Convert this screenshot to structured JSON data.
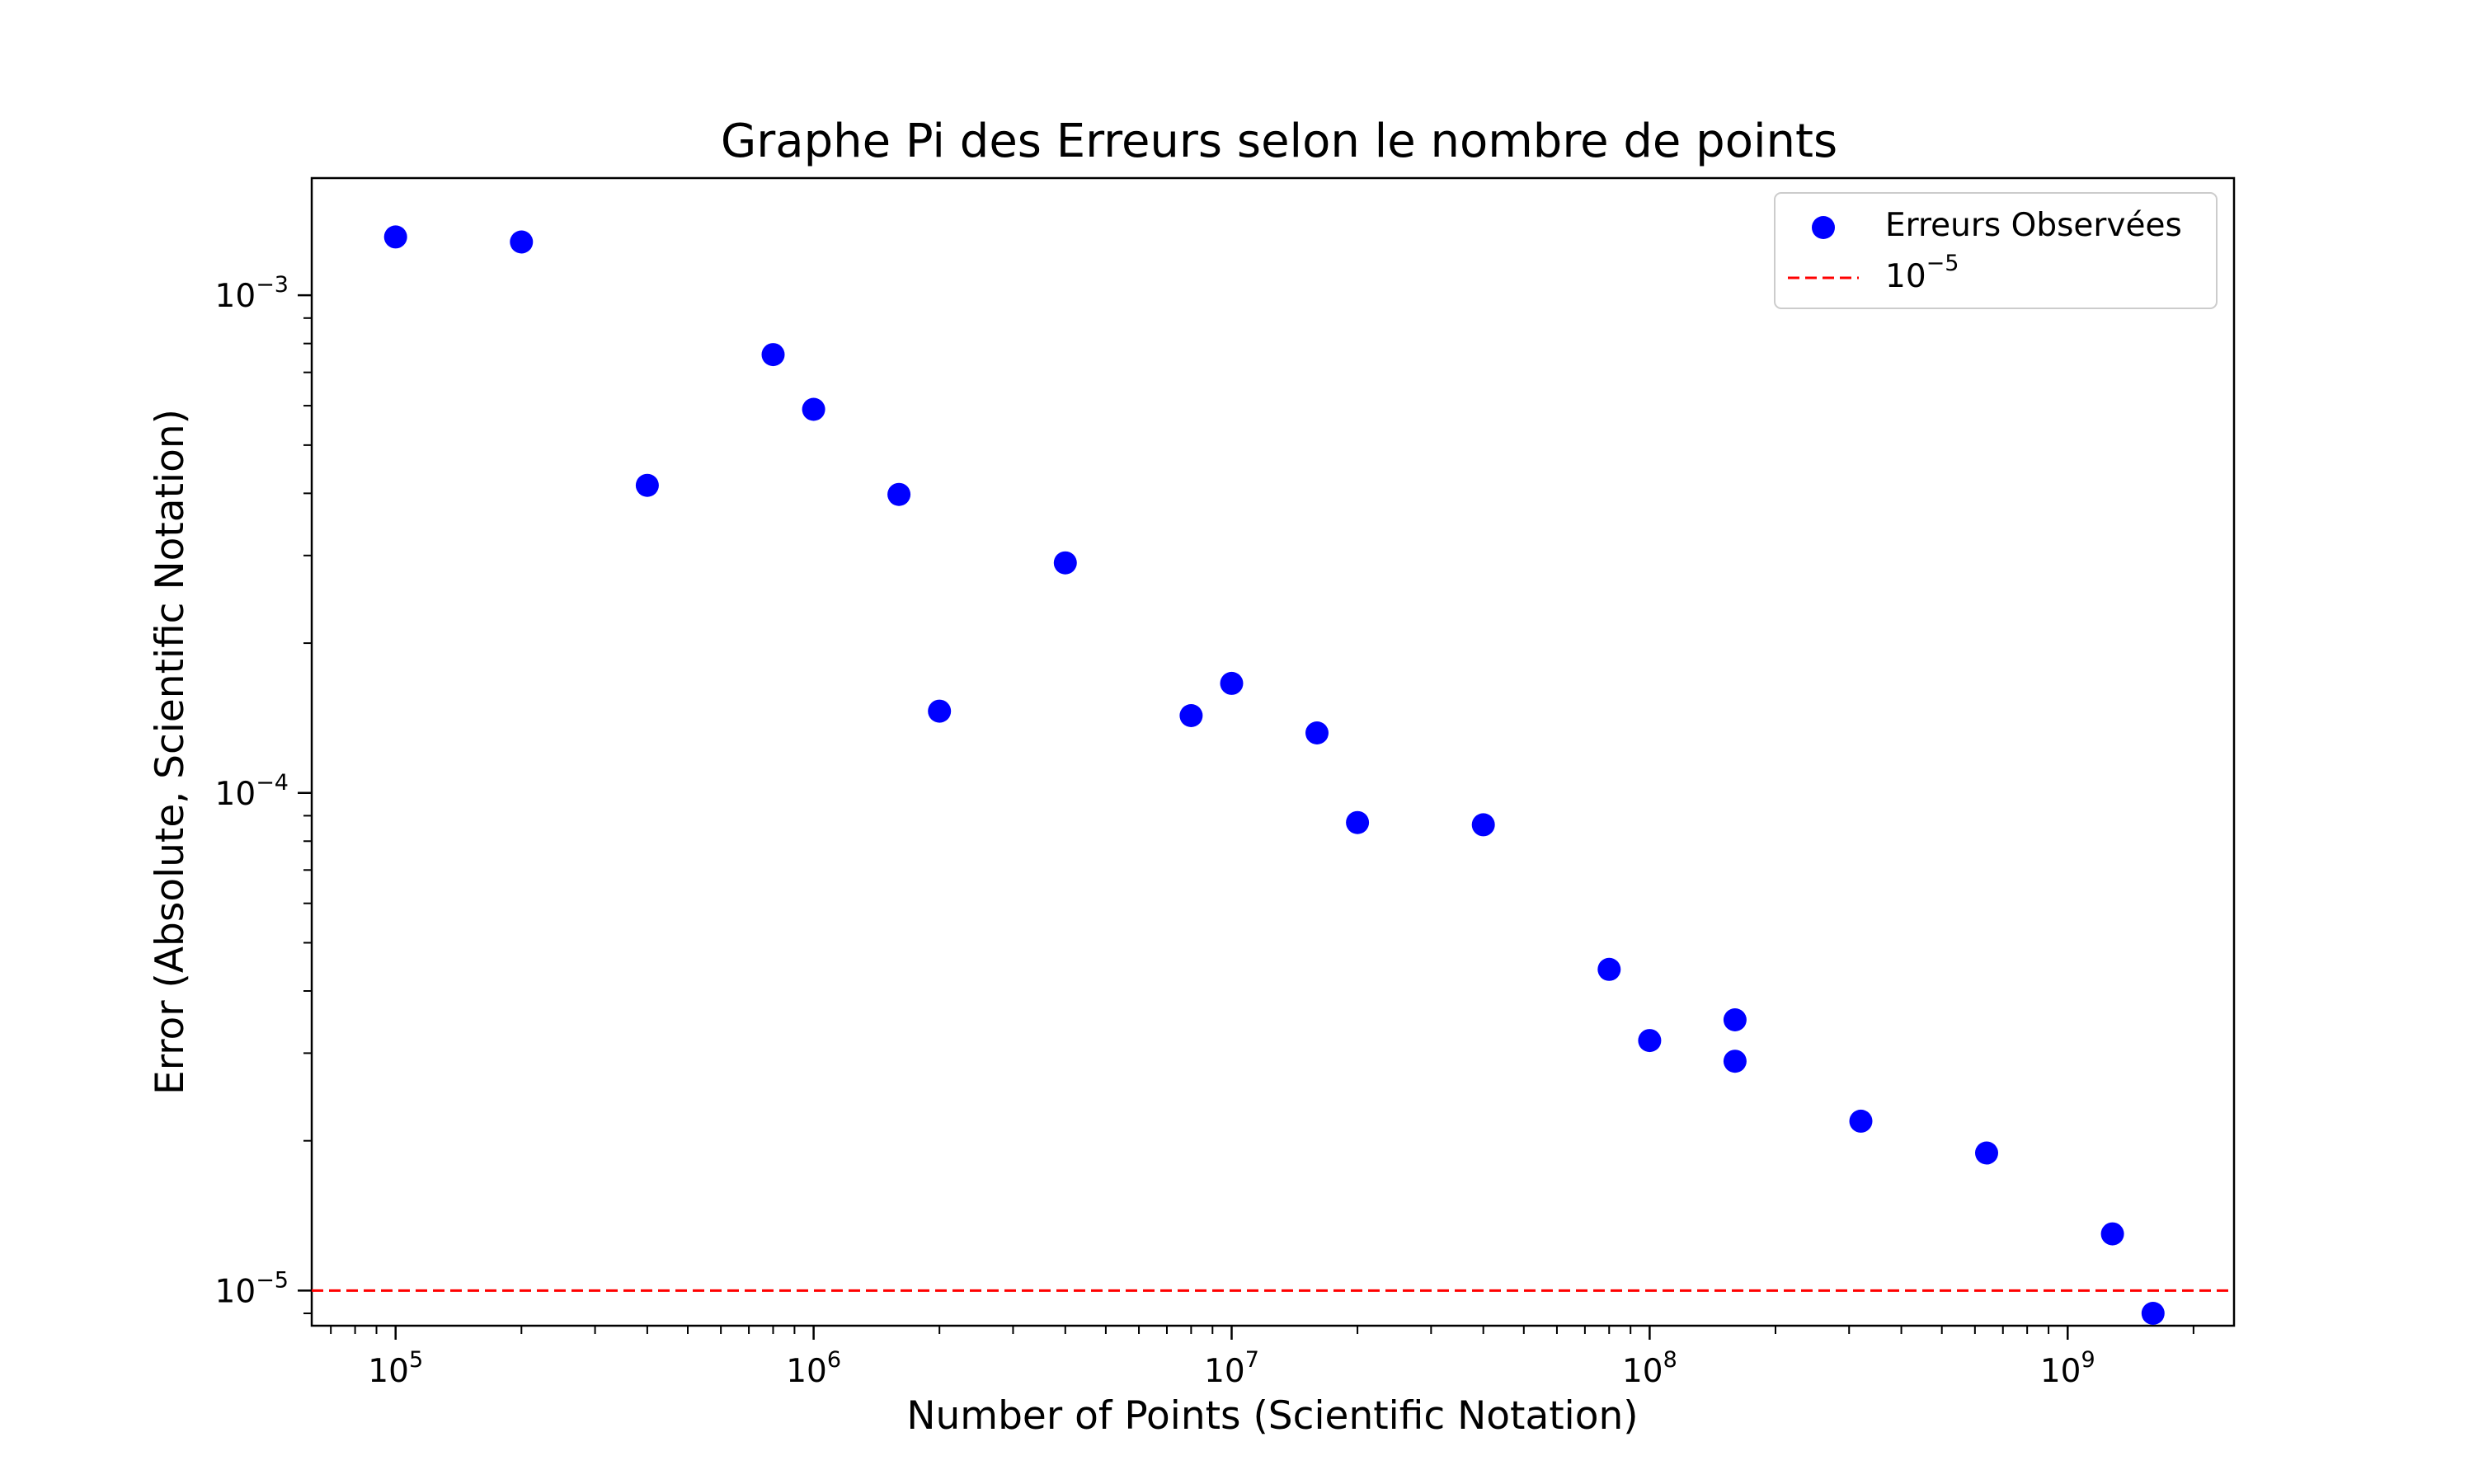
{
  "chart_data": {
    "type": "scatter",
    "title": "Graphe Pi des Erreurs selon le nombre de points",
    "xlabel": "Number of Points (Scientific Notation)",
    "ylabel": "Error (Absolute, Scientific Notation)",
    "xscale": "log",
    "yscale": "log",
    "xlim": [
      63000,
      2500000000
    ],
    "ylim": [
      8.5e-06,
      0.00172
    ],
    "grid": false,
    "legend_position": "top-right",
    "x_ticks": [
      {
        "value": 100000,
        "base": "10",
        "exp": "5"
      },
      {
        "value": 1000000,
        "base": "10",
        "exp": "6"
      },
      {
        "value": 10000000,
        "base": "10",
        "exp": "7"
      },
      {
        "value": 100000000,
        "base": "10",
        "exp": "8"
      },
      {
        "value": 1000000000,
        "base": "10",
        "exp": "9"
      }
    ],
    "y_ticks": [
      {
        "value": 0.001,
        "base": "10",
        "exp": "−3"
      },
      {
        "value": 0.0001,
        "base": "10",
        "exp": "−4"
      },
      {
        "value": 1e-05,
        "base": "10",
        "exp": "−5"
      }
    ],
    "series": [
      {
        "name": "Erreurs Observées",
        "color": "#0000ff",
        "marker": "circle",
        "points": [
          {
            "x": 100000,
            "y": 0.00131
          },
          {
            "x": 200000,
            "y": 0.00128
          },
          {
            "x": 400000,
            "y": 0.000415
          },
          {
            "x": 800000,
            "y": 0.00076
          },
          {
            "x": 1000000,
            "y": 0.00059
          },
          {
            "x": 1600000,
            "y": 0.000398
          },
          {
            "x": 2000000,
            "y": 0.000146
          },
          {
            "x": 4000000,
            "y": 0.00029
          },
          {
            "x": 8000000,
            "y": 0.000143
          },
          {
            "x": 10000000,
            "y": 0.000166
          },
          {
            "x": 16000000,
            "y": 0.000132
          },
          {
            "x": 20000000,
            "y": 8.72e-05
          },
          {
            "x": 40000000,
            "y": 8.63e-05
          },
          {
            "x": 80000000,
            "y": 4.42e-05
          },
          {
            "x": 100000000,
            "y": 3.18e-05
          },
          {
            "x": 160000000,
            "y": 3.5e-05
          },
          {
            "x": 160000000,
            "y": 2.89e-05
          },
          {
            "x": 320000000,
            "y": 2.19e-05
          },
          {
            "x": 640000000,
            "y": 1.89e-05
          },
          {
            "x": 1280000000,
            "y": 1.3e-05
          },
          {
            "x": 1600000000,
            "y": 9e-06
          }
        ]
      }
    ],
    "reference_line": {
      "orientation": "horizontal",
      "y": 1e-05,
      "color": "#ff0000",
      "style": "dashed",
      "label_base": "10",
      "label_exp": "−5"
    }
  }
}
